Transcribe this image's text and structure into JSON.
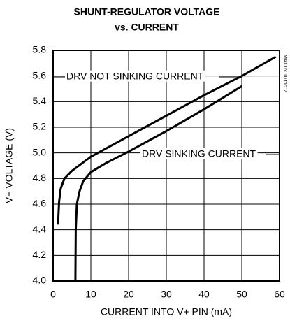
{
  "chart_data": {
    "type": "line",
    "title": [
      "SHUNT-REGULATOR VOLTAGE",
      "vs. CURRENT"
    ],
    "xlabel": "CURRENT INTO V+ PIN (mA)",
    "ylabel": "V+ VOLTAGE (V)",
    "watermark": "MAX16010 toc07",
    "xlim": [
      0,
      60
    ],
    "xticks": [
      0,
      10,
      20,
      30,
      40,
      50,
      60
    ],
    "ylim": [
      4.0,
      5.8
    ],
    "yticks": [
      {
        "value": 4.0,
        "label": "4.0"
      },
      {
        "value": 4.2,
        "label": "4.2"
      },
      {
        "value": 4.4,
        "label": "4.4"
      },
      {
        "value": 4.6,
        "label": "4.6"
      },
      {
        "value": 4.8,
        "label": "4.8"
      },
      {
        "value": 5.0,
        "label": "5.0"
      },
      {
        "value": 5.2,
        "label": "5.2"
      },
      {
        "value": 5.4,
        "label": "5.4"
      },
      {
        "value": 5.6,
        "label": "5.6"
      },
      {
        "value": 5.8,
        "label": "5.8"
      }
    ],
    "grid": true,
    "series": [
      {
        "name": "DRV NOT SINKING CURRENT",
        "color": "#000000",
        "x": [
          1.3,
          1.6,
          2,
          3,
          5,
          10,
          20,
          30,
          40,
          50,
          59
        ],
        "values": [
          4.44,
          4.62,
          4.72,
          4.8,
          4.86,
          4.97,
          5.13,
          5.29,
          5.45,
          5.6,
          5.75
        ]
      },
      {
        "name": "DRV SINKING CURRENT",
        "color": "#000000",
        "x": [
          5.9,
          6,
          6.3,
          7,
          8,
          10,
          14,
          20,
          30,
          40,
          50
        ],
        "values": [
          4.0,
          4.4,
          4.6,
          4.7,
          4.78,
          4.85,
          4.92,
          5.01,
          5.17,
          5.34,
          5.52
        ]
      }
    ]
  }
}
